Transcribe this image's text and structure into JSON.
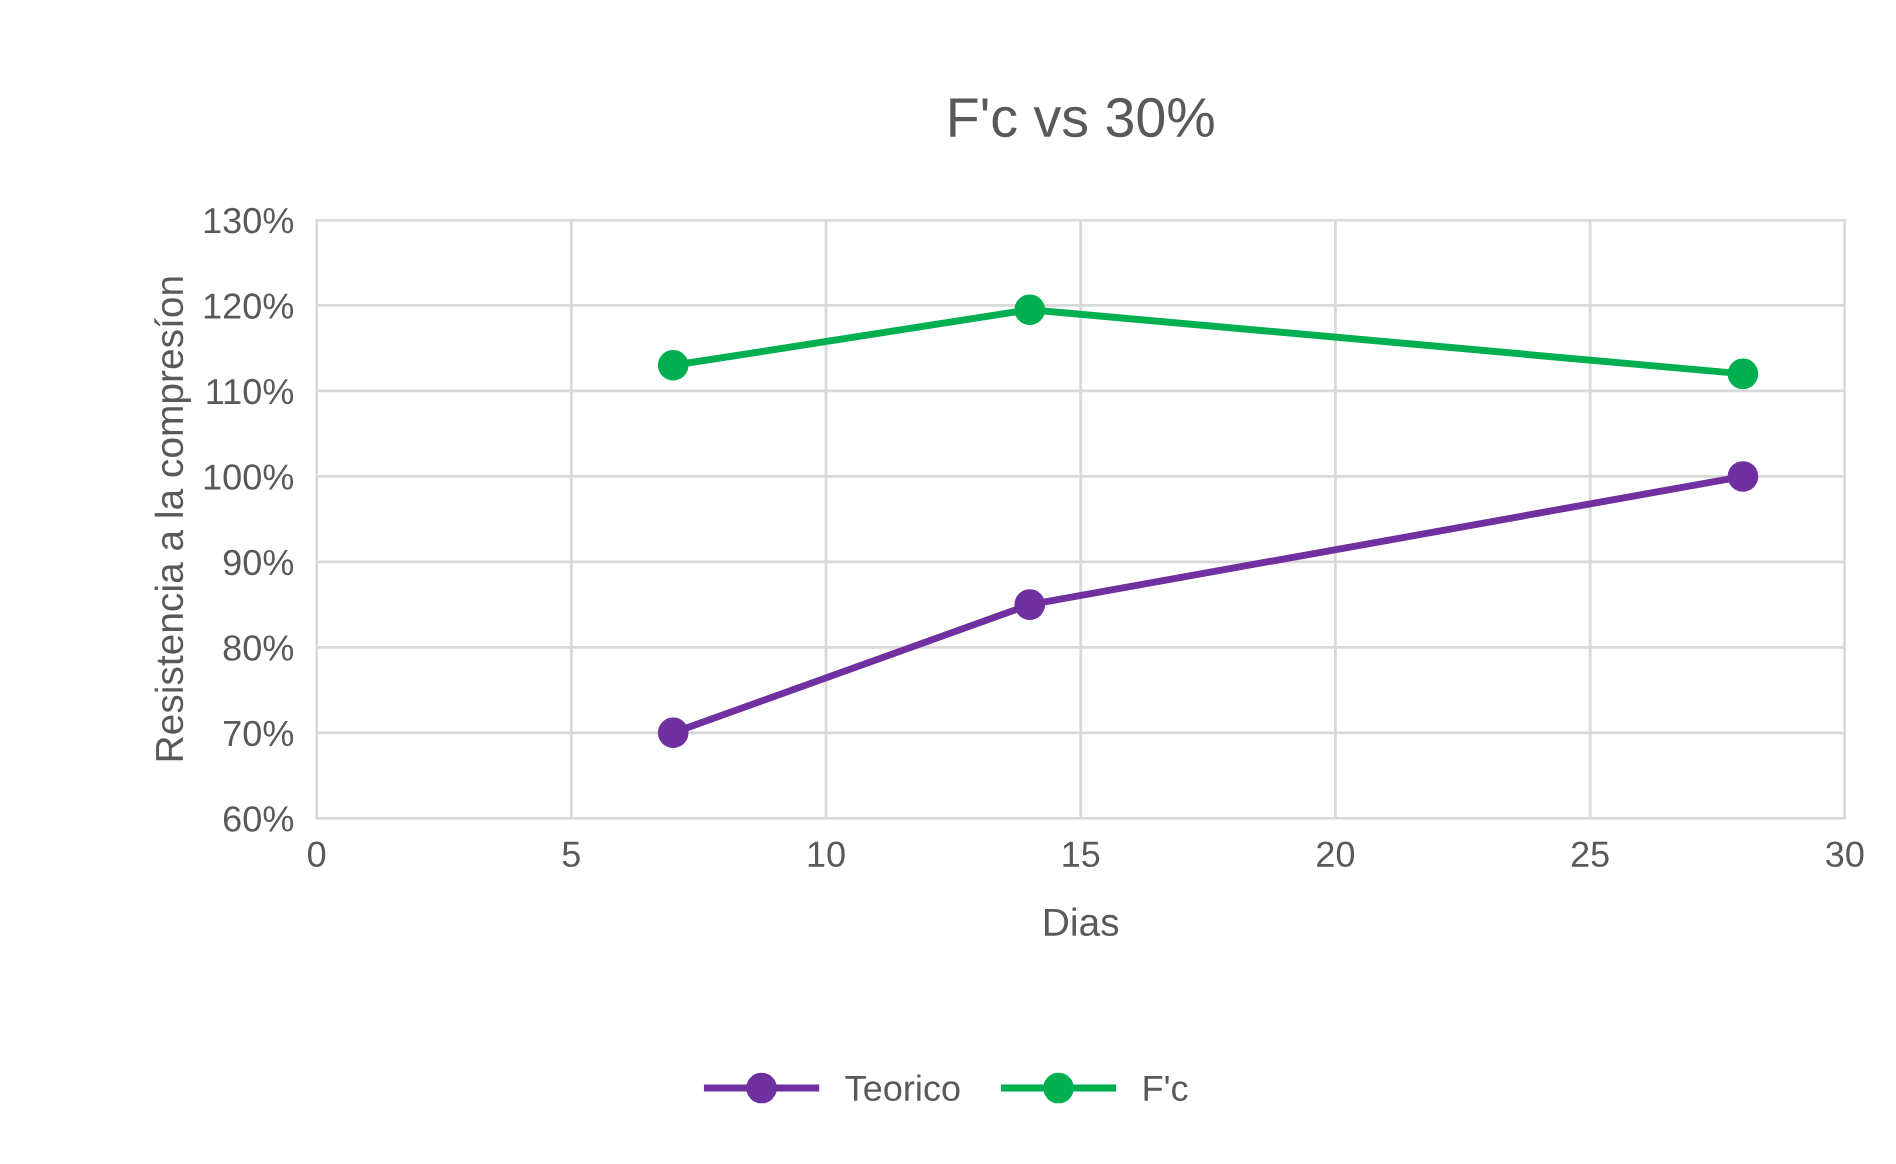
{
  "chart_data": {
    "type": "line",
    "title": "F'c vs 30%",
    "xlabel": "Dias",
    "ylabel": "Resistencia a la compresíon",
    "x": [
      7,
      14,
      28
    ],
    "series": [
      {
        "name": "Teorico",
        "color": "#7030a0",
        "values": [
          70,
          85,
          100
        ]
      },
      {
        "name": "F'c",
        "color": "#00b050",
        "values": [
          113,
          119.5,
          112
        ]
      }
    ],
    "xlim": [
      0,
      30
    ],
    "xticks": [
      0,
      5,
      10,
      15,
      20,
      25,
      30
    ],
    "ylim": [
      60,
      130
    ],
    "yticks": [
      {
        "value": 60,
        "label": "60%"
      },
      {
        "value": 70,
        "label": "70%"
      },
      {
        "value": 80,
        "label": "80%"
      },
      {
        "value": 90,
        "label": "90%"
      },
      {
        "value": 100,
        "label": "100%"
      },
      {
        "value": 110,
        "label": "110%"
      },
      {
        "value": 120,
        "label": "120%"
      },
      {
        "value": 130,
        "label": "130%"
      }
    ],
    "grid": true,
    "legend": "bottom",
    "marker": "circle",
    "line_style": "solid"
  }
}
